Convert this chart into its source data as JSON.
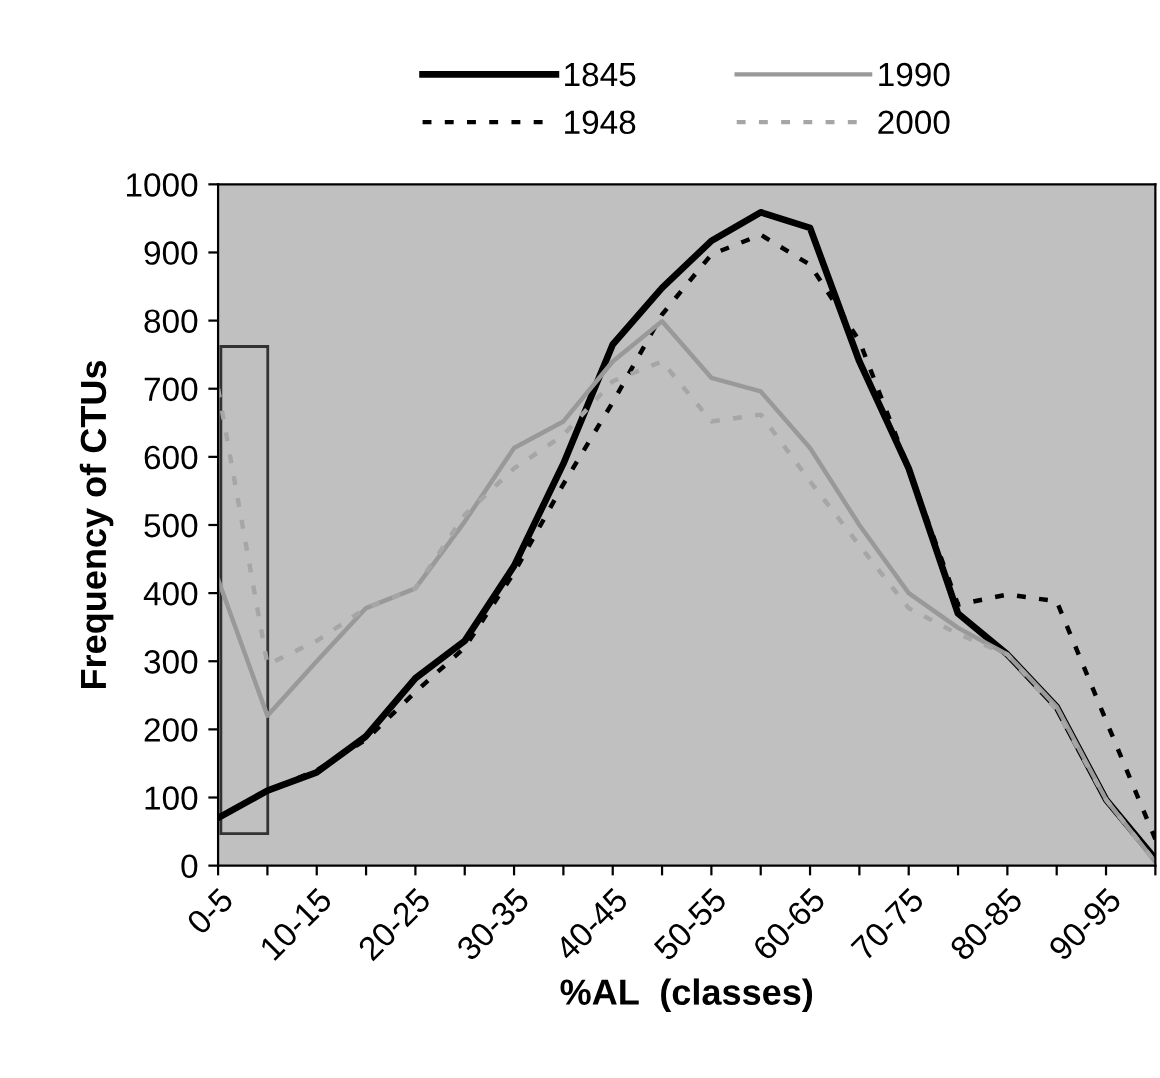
{
  "chart_data": {
    "type": "line",
    "xlabel": "%AL  (classes)",
    "ylabel": "Frequency of CTUs",
    "categories": [
      "0-5",
      null,
      "10-15",
      null,
      "20-25",
      null,
      "30-35",
      null,
      "40-45",
      null,
      "50-55",
      null,
      "60-65",
      null,
      "70-75",
      null,
      "80-85",
      null,
      "90-95",
      null
    ],
    "series": [
      {
        "name": "1845",
        "color": "#000000",
        "line_style": "solid",
        "values": [
          70,
          110,
          137,
          190,
          275,
          330,
          440,
          590,
          765,
          848,
          917,
          959,
          936,
          740,
          583,
          370,
          310,
          233,
          97,
          10
        ]
      },
      {
        "name": "1948",
        "color": "#000000",
        "line_style": "dotted",
        "values": [
          70,
          110,
          140,
          185,
          255,
          320,
          430,
          560,
          680,
          809,
          897,
          926,
          882,
          770,
          583,
          383,
          398,
          388,
          213,
          39
        ]
      },
      {
        "name": "1990",
        "color": "#999999",
        "line_style": "solid",
        "values": [
          420,
          220,
          300,
          378,
          407,
          505,
          613,
          652,
          740,
          799,
          716,
          696,
          613,
          500,
          400,
          349,
          310,
          233,
          97,
          5
        ]
      },
      {
        "name": "2000",
        "color": "#a6a6a6",
        "line_style": "dotted",
        "values": [
          700,
          295,
          330,
          378,
          407,
          515,
          583,
          632,
          711,
          740,
          652,
          662,
          564,
          470,
          378,
          340,
          310,
          228,
          97,
          5
        ]
      }
    ],
    "ylim": [
      0,
      1000
    ],
    "yticks": [
      0,
      100,
      200,
      300,
      400,
      500,
      600,
      700,
      800,
      900,
      1000
    ],
    "legend": "top",
    "marker": "none"
  }
}
